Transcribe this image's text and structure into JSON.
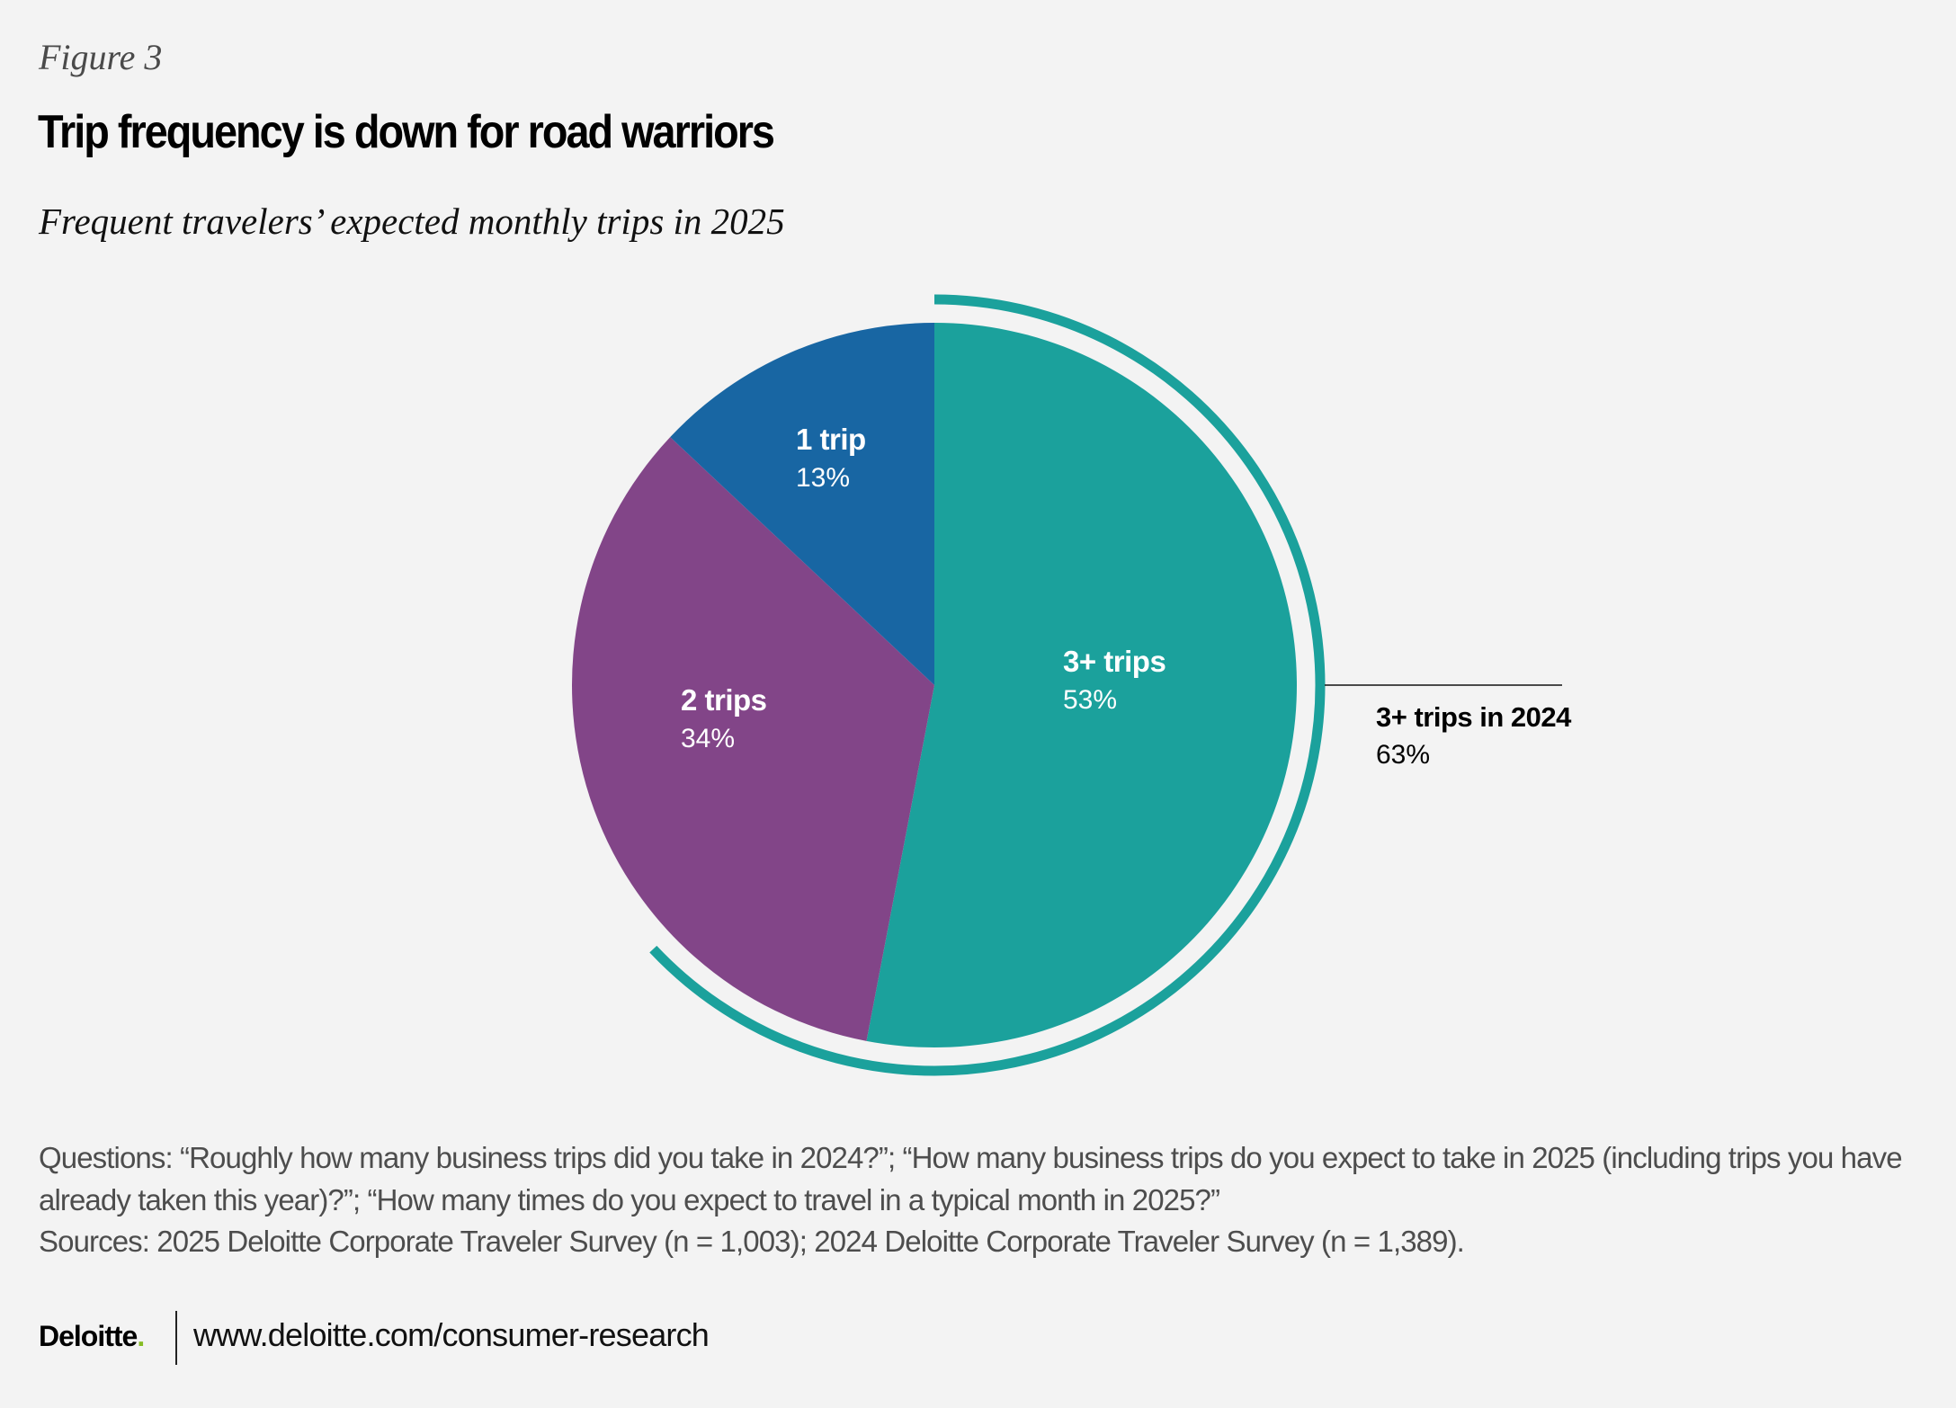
{
  "header": {
    "figure_label": "Figure 3",
    "title": "Trip frequency is down for road warriors",
    "subtitle": "Frequent travelers’ expected monthly trips in 2025"
  },
  "chart_data": {
    "type": "pie",
    "title": "Trip frequency is down for road warriors",
    "subtitle": "Frequent travelers’ expected monthly trips in 2025",
    "start": "12 o'clock, clockwise",
    "slices": [
      {
        "label": "3+ trips",
        "value": 53,
        "display": "53%",
        "color": "#1ba19c"
      },
      {
        "label": "2 trips",
        "value": 34,
        "display": "34%",
        "color": "#824588"
      },
      {
        "label": "1 trip",
        "value": 13,
        "display": "13%",
        "color": "#1866a3"
      }
    ],
    "annotation": {
      "label": "3+ trips in 2024",
      "value": 63,
      "display": "63%",
      "color": "#1ba19c",
      "style": "outer arc from 12 o'clock clockwise"
    },
    "unit": "%"
  },
  "notes": {
    "questions": "Questions: “Roughly how many business trips did you take in 2024?”; “How many business trips do you expect to take in 2025 (including trips you have already taken this year)?”; “How many times do you expect to travel in a typical month in 2025?”",
    "sources": "Sources: 2025 Deloitte Corporate Traveler Survey (n = 1,003); 2024 Deloitte Corporate Traveler Survey (n = 1,389)."
  },
  "footer": {
    "logo_text": "Deloitte",
    "logo_dot": ".",
    "url": "www.deloitte.com/consumer-research"
  }
}
